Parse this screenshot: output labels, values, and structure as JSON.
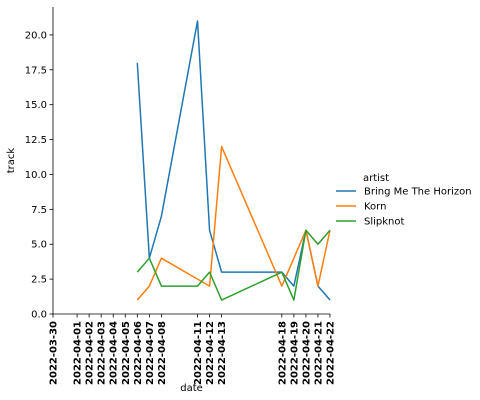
{
  "chart_data": {
    "type": "line",
    "xlabel": "date",
    "ylabel": "track",
    "ylim": [
      0,
      22
    ],
    "yticks": [
      0.0,
      2.5,
      5.0,
      7.5,
      10.0,
      12.5,
      15.0,
      17.5,
      20.0
    ],
    "ytick_labels": [
      "0.0",
      "2.5",
      "5.0",
      "7.5",
      "10.0",
      "12.5",
      "15.0",
      "17.5",
      "20.0"
    ],
    "xlim": [
      "2022-03-30",
      "2022-04-22"
    ],
    "xticks": [
      "2022-03-30",
      "2022-04-01",
      "2022-04-02",
      "2022-04-03",
      "2022-04-04",
      "2022-04-05",
      "2022-04-06",
      "2022-04-07",
      "2022-04-08",
      "2022-04-11",
      "2022-04-12",
      "2022-04-13",
      "2022-04-18",
      "2022-04-19",
      "2022-04-20",
      "2022-04-21",
      "2022-04-22"
    ],
    "legend": {
      "title": "artist",
      "placement": "right"
    },
    "grid": false,
    "series": [
      {
        "name": "Bring Me The Horizon",
        "color": "#1f77b4",
        "x": [
          "2022-04-06",
          "2022-04-07",
          "2022-04-08",
          "2022-04-11",
          "2022-04-12",
          "2022-04-13",
          "2022-04-18",
          "2022-04-19",
          "2022-04-20",
          "2022-04-21",
          "2022-04-22"
        ],
        "y": [
          18,
          4,
          7,
          21,
          6,
          3,
          3,
          2,
          6,
          2,
          1
        ]
      },
      {
        "name": "Korn",
        "color": "#ff7f0e",
        "x": [
          "2022-04-06",
          "2022-04-07",
          "2022-04-08",
          "2022-04-11",
          "2022-04-12",
          "2022-04-13",
          "2022-04-18",
          "2022-04-19",
          "2022-04-20",
          "2022-04-21",
          "2022-04-22"
        ],
        "y": [
          1,
          2,
          4,
          2.5,
          2,
          12,
          2,
          4,
          6,
          2,
          6
        ]
      },
      {
        "name": "Slipknot",
        "color": "#2ca02c",
        "x": [
          "2022-04-06",
          "2022-04-07",
          "2022-04-08",
          "2022-04-11",
          "2022-04-12",
          "2022-04-13",
          "2022-04-18",
          "2022-04-19",
          "2022-04-20",
          "2022-04-21",
          "2022-04-22"
        ],
        "y": [
          3,
          4,
          2,
          2,
          3,
          1,
          3,
          1,
          6,
          5,
          6
        ]
      }
    ]
  }
}
